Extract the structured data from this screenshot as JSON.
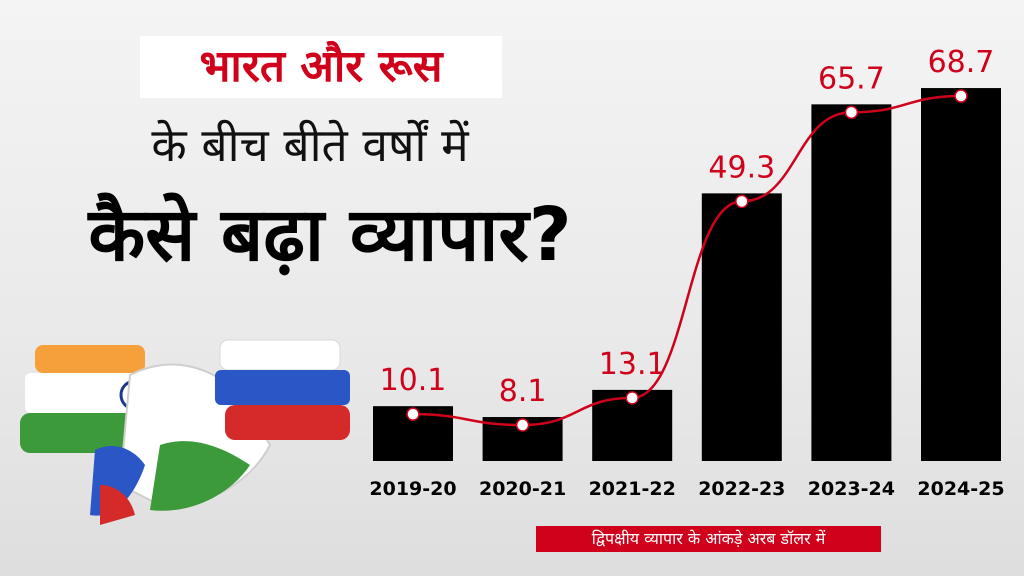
{
  "headline": {
    "line1": "भारत और रूस",
    "line2": "के बीच बीते वर्षों में",
    "line3": "कैसे बढ़ा व्यापार?"
  },
  "note": "द्विपक्षीय व्यापार के आंकड़े अरब डॉलर में",
  "colors": {
    "accent": "#d0021b",
    "bar": "#000000",
    "india_saffron": "#f5a03a",
    "india_green": "#3c9a3a",
    "russia_blue": "#2a56c6",
    "russia_red": "#d42a2a"
  },
  "icons": [
    "handshake-flags-icon"
  ],
  "chart_data": {
    "type": "bar",
    "categories": [
      "2019-20",
      "2020-21",
      "2021-22",
      "2022-23",
      "2023-24",
      "2024-25"
    ],
    "values": [
      10.1,
      8.1,
      13.1,
      49.3,
      65.7,
      68.7
    ],
    "labels": [
      "10.1",
      "8.1",
      "13.1",
      "49.3",
      "65.7",
      "68.7"
    ],
    "trend_line": true,
    "ylim": [
      0,
      70
    ],
    "grid": false,
    "legend": "none"
  }
}
